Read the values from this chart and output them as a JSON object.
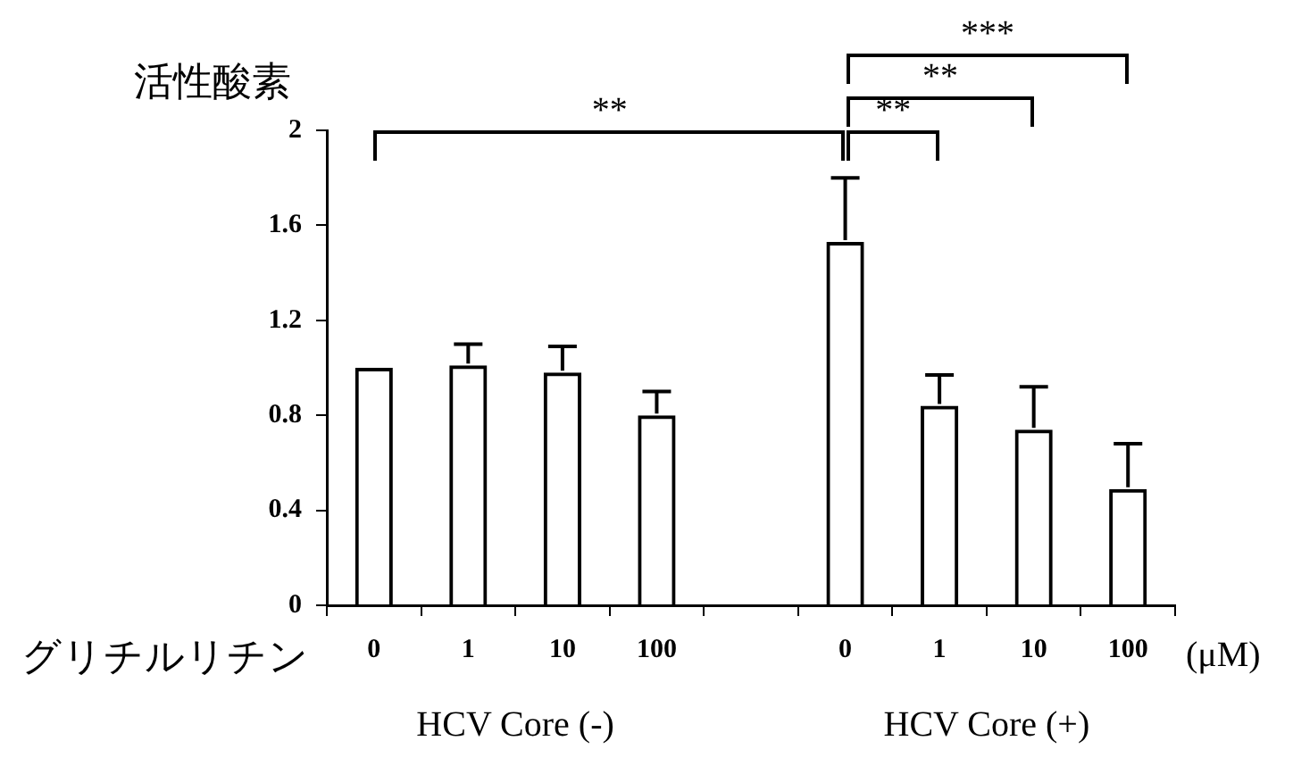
{
  "chart_data": {
    "type": "bar",
    "ylabel": "活性酸素",
    "xlabel": "グリチルリチン",
    "categories": [
      "0",
      "1",
      "10",
      "100",
      null,
      "0",
      "1",
      "10",
      "100"
    ],
    "values": [
      1.0,
      1.01,
      0.98,
      0.8,
      null,
      1.53,
      0.84,
      0.74,
      0.49
    ],
    "errors": [
      null,
      [
        1.01,
        1.1
      ],
      [
        0.98,
        1.09
      ],
      [
        0.8,
        0.9
      ],
      null,
      [
        1.53,
        1.8
      ],
      [
        0.84,
        0.97
      ],
      [
        0.74,
        0.92
      ],
      [
        0.49,
        0.68
      ]
    ],
    "color": "#000000",
    "ylim": [
      0,
      2
    ],
    "yticks": [
      0,
      0.4,
      0.8,
      1.2,
      1.6,
      2
    ],
    "grid": false,
    "legend": false,
    "annotations": [
      "**",
      "**",
      "**",
      "***",
      "(μM)",
      "HCV Core (-)",
      "HCV Core (+)"
    ]
  }
}
